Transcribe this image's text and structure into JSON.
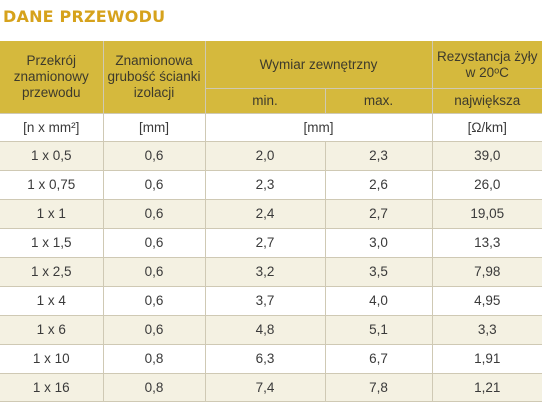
{
  "title": "DANE PRZEWODU",
  "headers": {
    "cross_section": "Przekrój znamionowy przewodu",
    "insulation": "Znamionowa grubość ścianki izolacji",
    "outer_dimension": "Wymiar zewnętrzny",
    "resistance": "Rezystancja żyły w 20ᵒC",
    "min": "min.",
    "max": "max.",
    "max_resistance": "największa"
  },
  "units": {
    "cross_section": "[n x mm²]",
    "insulation": "[mm]",
    "outer_dimension": "[mm]",
    "resistance": "[Ω/km]"
  },
  "rows": [
    {
      "section": "1 x 0,5",
      "insulation": "0,6",
      "min": "2,0",
      "max": "2,3",
      "resistance": "39,0"
    },
    {
      "section": "1 x 0,75",
      "insulation": "0,6",
      "min": "2,3",
      "max": "2,6",
      "resistance": "26,0"
    },
    {
      "section": "1 x 1",
      "insulation": "0,6",
      "min": "2,4",
      "max": "2,7",
      "resistance": "19,05"
    },
    {
      "section": "1 x 1,5",
      "insulation": "0,6",
      "min": "2,7",
      "max": "3,0",
      "resistance": "13,3"
    },
    {
      "section": "1 x 2,5",
      "insulation": "0,6",
      "min": "3,2",
      "max": "3,5",
      "resistance": "7,98"
    },
    {
      "section": "1 x 4",
      "insulation": "0,6",
      "min": "3,7",
      "max": "4,0",
      "resistance": "4,95"
    },
    {
      "section": "1 x 6",
      "insulation": "0,6",
      "min": "4,8",
      "max": "5,1",
      "resistance": "3,3"
    },
    {
      "section": "1 x 10",
      "insulation": "0,8",
      "min": "6,3",
      "max": "6,7",
      "resistance": "1,91"
    },
    {
      "section": "1 x 16",
      "insulation": "0,8",
      "min": "7,4",
      "max": "7,8",
      "resistance": "1,21"
    }
  ],
  "colors": {
    "title": "#d6a21c",
    "header_bg": "#d5b93d",
    "row_alt_bg": "#f4f1e2",
    "border": "#cfc9b4"
  }
}
